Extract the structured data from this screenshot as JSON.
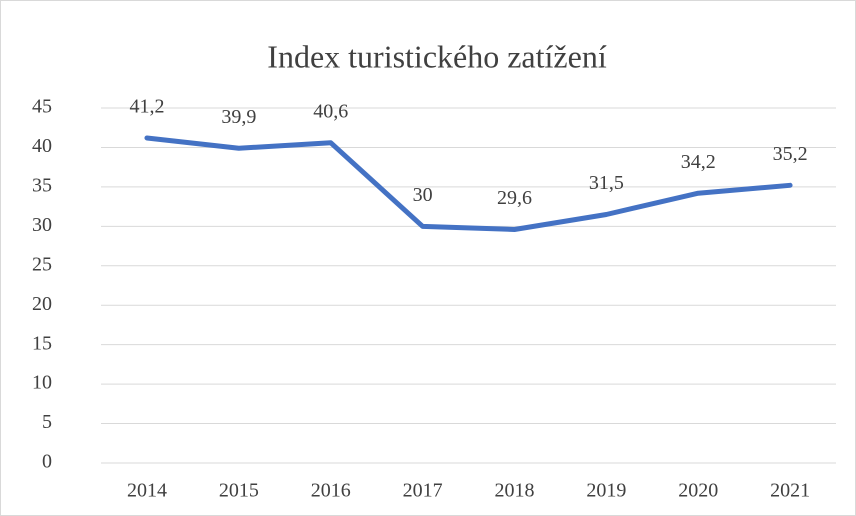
{
  "chart_data": {
    "type": "line",
    "title": "Index turistického zatížení",
    "categories": [
      "2014",
      "2015",
      "2016",
      "2017",
      "2018",
      "2019",
      "2020",
      "2021"
    ],
    "values": [
      41.2,
      39.9,
      40.6,
      30,
      29.6,
      31.5,
      34.2,
      35.2
    ],
    "value_labels": [
      "41,2",
      "39,9",
      "40,6",
      "30",
      "29,6",
      "31,5",
      "34,2",
      "35,2"
    ],
    "color": "#4472c4",
    "ylim": [
      0,
      45
    ],
    "yticks": [
      0,
      5,
      10,
      15,
      20,
      25,
      30,
      35,
      40,
      45
    ],
    "grid": true
  }
}
